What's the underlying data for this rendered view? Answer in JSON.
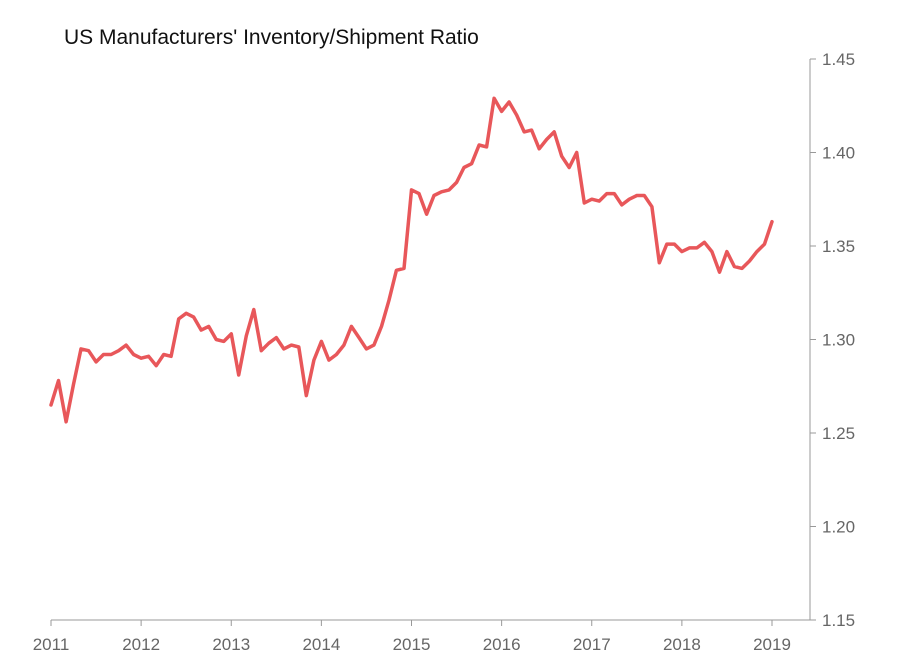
{
  "chart_data": {
    "type": "line",
    "title": "US Manufacturers' Inventory/Shipment Ratio",
    "xlabel": "",
    "ylabel": "",
    "xlim": [
      2011.0,
      2019.0
    ],
    "ylim": [
      1.15,
      1.45
    ],
    "x_ticks": [
      "2011",
      "2012",
      "2013",
      "2014",
      "2015",
      "2016",
      "2017",
      "2018",
      "2019"
    ],
    "y_ticks": [
      "1.15",
      "1.20",
      "1.25",
      "1.30",
      "1.35",
      "1.40",
      "1.45"
    ],
    "y_axis_side": "right",
    "grid": false,
    "line_color": "#e8575a",
    "axis_color": "#999999",
    "series": [
      {
        "x": [
          2011.0,
          2011.083,
          2011.167,
          2011.25,
          2011.333,
          2011.417,
          2011.5,
          2011.583,
          2011.667,
          2011.75,
          2011.833,
          2011.917,
          2012.0,
          2012.083,
          2012.167,
          2012.25,
          2012.333,
          2012.417,
          2012.5,
          2012.583,
          2012.667,
          2012.75,
          2012.833,
          2012.917,
          2013.0,
          2013.083,
          2013.167,
          2013.25,
          2013.333,
          2013.417,
          2013.5,
          2013.583,
          2013.667,
          2013.75,
          2013.833,
          2013.917,
          2014.0,
          2014.083,
          2014.167,
          2014.25,
          2014.333,
          2014.417,
          2014.5,
          2014.583,
          2014.667,
          2014.75,
          2014.833,
          2014.917,
          2015.0,
          2015.083,
          2015.167,
          2015.25,
          2015.333,
          2015.417,
          2015.5,
          2015.583,
          2015.667,
          2015.75,
          2015.833,
          2015.917,
          2016.0,
          2016.083,
          2016.167,
          2016.25,
          2016.333,
          2016.417,
          2016.5,
          2016.583,
          2016.667,
          2016.75,
          2016.833,
          2016.917,
          2017.0,
          2017.083,
          2017.167,
          2017.25,
          2017.333,
          2017.417,
          2017.5,
          2017.583,
          2017.667,
          2017.75,
          2017.833,
          2017.917,
          2018.0,
          2018.083,
          2018.167,
          2018.25,
          2018.333,
          2018.417,
          2018.5,
          2018.583,
          2018.667,
          2018.75,
          2018.833,
          2018.917,
          2019.0
        ],
        "y": [
          1.265,
          1.278,
          1.256,
          1.276,
          1.295,
          1.294,
          1.288,
          1.292,
          1.292,
          1.294,
          1.297,
          1.292,
          1.29,
          1.291,
          1.286,
          1.292,
          1.291,
          1.311,
          1.314,
          1.312,
          1.305,
          1.307,
          1.3,
          1.299,
          1.303,
          1.281,
          1.302,
          1.316,
          1.294,
          1.298,
          1.301,
          1.295,
          1.297,
          1.296,
          1.27,
          1.289,
          1.299,
          1.289,
          1.292,
          1.297,
          1.307,
          1.301,
          1.295,
          1.297,
          1.307,
          1.321,
          1.337,
          1.338,
          1.38,
          1.378,
          1.367,
          1.377,
          1.379,
          1.38,
          1.384,
          1.392,
          1.394,
          1.404,
          1.403,
          1.429,
          1.422,
          1.427,
          1.42,
          1.411,
          1.412,
          1.402,
          1.407,
          1.411,
          1.398,
          1.392,
          1.4,
          1.373,
          1.375,
          1.374,
          1.378,
          1.378,
          1.372,
          1.375,
          1.377,
          1.377,
          1.371,
          1.341,
          1.351,
          1.351,
          1.347,
          1.349,
          1.349,
          1.352,
          1.347,
          1.336,
          1.347,
          1.339,
          1.338,
          1.342,
          1.347,
          1.351,
          1.363
        ]
      }
    ]
  }
}
